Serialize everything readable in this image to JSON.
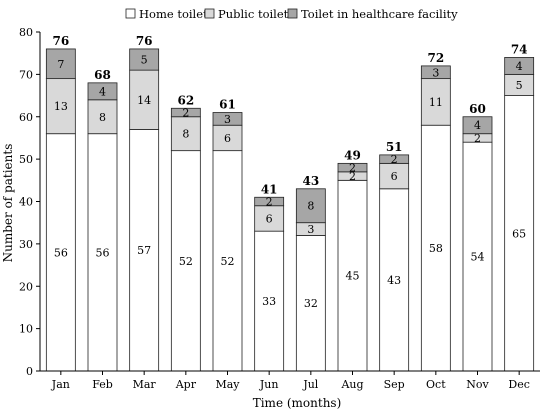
{
  "chart_data": {
    "type": "bar",
    "stacked": true,
    "categories": [
      "Jan",
      "Feb",
      "Mar",
      "Apr",
      "May",
      "Jun",
      "Jul",
      "Aug",
      "Sep",
      "Oct",
      "Nov",
      "Dec"
    ],
    "series": [
      {
        "name": "Home toilet",
        "color": "#ffffff",
        "values": [
          56,
          56,
          57,
          52,
          52,
          33,
          32,
          45,
          43,
          58,
          54,
          65
        ]
      },
      {
        "name": "Public toilet",
        "color": "#d9d9d9",
        "values": [
          13,
          8,
          14,
          8,
          6,
          6,
          3,
          2,
          6,
          11,
          2,
          5
        ]
      },
      {
        "name": "Toilet in healthcare facility",
        "color": "#a6a6a6",
        "values": [
          7,
          4,
          5,
          2,
          3,
          2,
          8,
          2,
          2,
          3,
          4,
          4
        ]
      }
    ],
    "totals": [
      76,
      68,
      76,
      62,
      61,
      41,
      43,
      49,
      51,
      72,
      60,
      74
    ],
    "xlabel": "Time (months)",
    "ylabel": "Number of patients",
    "ylim": [
      0,
      80
    ],
    "yticks": [
      0,
      10,
      20,
      30,
      40,
      50,
      60,
      70,
      80
    ],
    "grid": false,
    "legend_position": "top"
  }
}
